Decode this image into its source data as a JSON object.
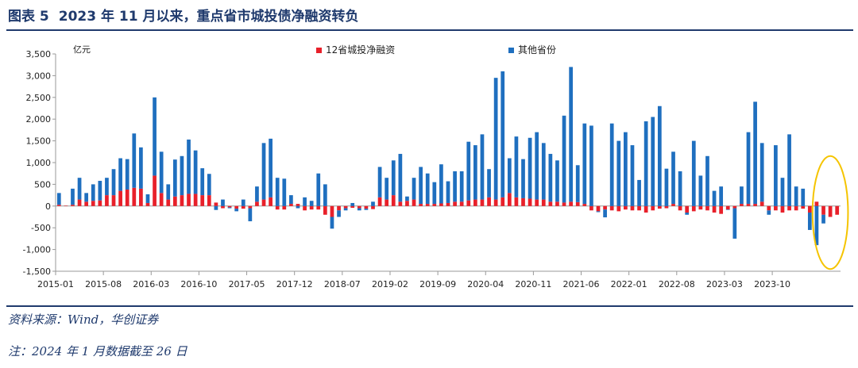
{
  "figure": {
    "label": "图表 5",
    "title": "2023 年 11 月以来，重点省市城投债净融资转负"
  },
  "source": "资料来源：Wind，华创证券",
  "note": "注：2024 年 1 月数据截至 26 日",
  "colors": {
    "red": "#e8202a",
    "blue": "#1f6fbf",
    "axis": "#999999",
    "highlight": "#f5c400",
    "title": "#1f3a6d"
  },
  "chart_data": {
    "type": "bar",
    "stacked": true,
    "ylabel": "亿元",
    "ylim": [
      -1500,
      3500
    ],
    "yticks": [
      -1500,
      -1000,
      -500,
      0,
      500,
      1000,
      1500,
      2000,
      2500,
      3000,
      3500
    ],
    "ytick_labels": [
      "-1,500",
      "-1,000",
      "-500",
      "0",
      "500",
      "1,000",
      "1,500",
      "2,000",
      "2,500",
      "3,000",
      "3,500"
    ],
    "xtick_labels": [
      "2015-01",
      "2015-08",
      "2016-03",
      "2016-10",
      "2017-05",
      "2017-12",
      "2018-07",
      "2019-02",
      "2019-09",
      "2020-04",
      "2020-11",
      "2021-06",
      "2022-01",
      "2022-08",
      "2023-03",
      "2023-10"
    ],
    "xtick_interval": 7,
    "start_month": "2015-01",
    "legend_position": "top",
    "highlight": {
      "shape": "ellipse",
      "months": [
        "2023-11",
        "2023-12",
        "2024-01"
      ]
    },
    "series": [
      {
        "name": "12省城投净融资",
        "color": "#e8202a",
        "values": [
          30,
          10,
          30,
          150,
          100,
          120,
          130,
          250,
          250,
          350,
          380,
          420,
          400,
          70,
          700,
          300,
          150,
          220,
          250,
          280,
          280,
          250,
          250,
          80,
          -50,
          -30,
          -60,
          -60,
          -50,
          100,
          150,
          200,
          -80,
          -80,
          50,
          50,
          -100,
          -80,
          -80,
          -200,
          -250,
          -100,
          -50,
          -40,
          -50,
          -60,
          -70,
          200,
          150,
          250,
          100,
          120,
          150,
          50,
          50,
          50,
          60,
          70,
          100,
          100,
          130,
          150,
          150,
          200,
          150,
          200,
          300,
          200,
          180,
          170,
          150,
          150,
          100,
          100,
          80,
          100,
          90,
          50,
          -100,
          -120,
          -80,
          -100,
          -120,
          -80,
          -100,
          -100,
          -150,
          -100,
          -60,
          -50,
          50,
          -100,
          -150,
          -120,
          -80,
          -100,
          -150,
          -180,
          -80,
          -50,
          50,
          50,
          50,
          100,
          -100,
          -100,
          -150,
          -100,
          -100,
          -60,
          -150,
          100,
          -200,
          -250,
          -200
        ]
      },
      {
        "name": "其他省份",
        "color": "#1f6fbf",
        "values": [
          270,
          0,
          370,
          500,
          200,
          380,
          450,
          400,
          600,
          750,
          700,
          1250,
          950,
          200,
          1800,
          950,
          350,
          850,
          900,
          1250,
          1000,
          620,
          490,
          -90,
          150,
          -20,
          -60,
          150,
          -300,
          350,
          1300,
          1350,
          650,
          630,
          200,
          -50,
          200,
          120,
          750,
          500,
          -270,
          -150,
          -50,
          70,
          -50,
          -30,
          100,
          700,
          500,
          800,
          1100,
          100,
          500,
          850,
          700,
          500,
          900,
          500,
          700,
          700,
          1350,
          1250,
          1500,
          650,
          2800,
          2900,
          800,
          1400,
          900,
          1400,
          1550,
          1300,
          1100,
          950,
          2000,
          3100,
          850,
          1850,
          1850,
          -20,
          -180,
          1900,
          1500,
          1700,
          1400,
          600,
          1950,
          2050,
          2300,
          860,
          1200,
          800,
          -50,
          1500,
          700,
          1150,
          350,
          450,
          -10,
          -700,
          400,
          1650,
          2350,
          1350,
          -100,
          1400,
          650,
          1650,
          450,
          400,
          -400,
          -900,
          -200
        ]
      }
    ]
  }
}
